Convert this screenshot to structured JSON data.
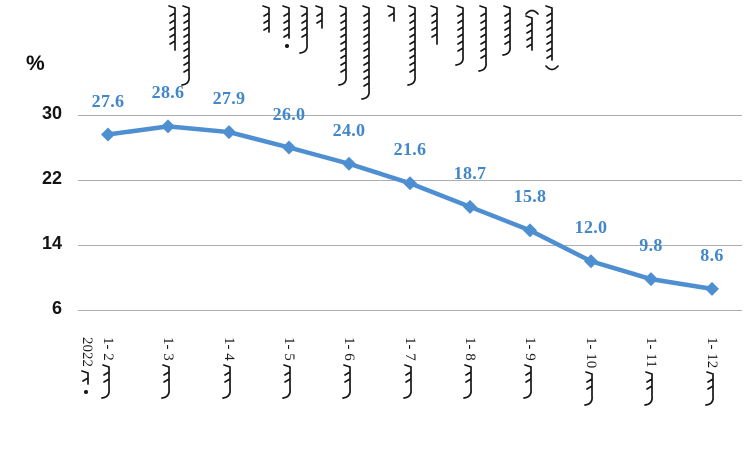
{
  "chart_data": {
    "type": "line",
    "title_mn": "ᠪᠦᠬᠦ ᠣᠷᠣᠨ ᠤ ᠲᠣᠭᠲᠠᠮᠠᠯ ᠬᠥᠷᠥᠩᠭᠡ ᠶᠢᠨ ᠪᠡᠯᠡ ᠣᠷᠣᠭᠤᠯᠤᠯᠲᠠ ᠶᠢᠨ ᠥᠰᠦᠯᠲᠡ ᠶᠢᠨ ᠬᠤᠷᠳᠤᠴᠠ ( ᠨᠡᠶᠢᠯᠡᠪᠦᠷᠢ )",
    "title_script": "traditional Mongolian, vertical columns",
    "unit_label": "%",
    "x_year_prefix": "2022",
    "x_year_word_mn": "ᠣᠨ ᠤ",
    "x_month_word_mn": "ᠰᠠᠷ᠎ᠠ",
    "categories": [
      "2022 ᠣᠨ ᠤ 1- 2 ᠰᠠᠷ᠎ᠠ",
      "1- 3 ᠰᠠᠷ᠎ᠠ",
      "1- 4 ᠰᠠᠷ᠎ᠠ",
      "1- 5 ᠰᠠᠷ᠎ᠠ",
      "1- 6 ᠰᠠᠷ᠎ᠠ",
      "1- 7 ᠰᠠᠷ᠎ᠠ",
      "1- 8 ᠰᠠᠷ᠎ᠠ",
      "1- 9 ᠰᠠᠷ᠎ᠠ",
      "1- 10 ᠰᠠᠷ᠎ᠠ",
      "1- 11 ᠰᠠᠷ᠎ᠠ",
      "1- 12 ᠰᠠᠷ᠎ᠠ"
    ],
    "categories_numeric": [
      "1- 2",
      "1- 3",
      "1- 4",
      "1- 5",
      "1- 6",
      "1- 7",
      "1- 8",
      "1- 9",
      "1- 10",
      "1- 11",
      "1- 12"
    ],
    "values": [
      27.6,
      28.6,
      27.9,
      26.0,
      24.0,
      21.6,
      18.7,
      15.8,
      12.0,
      9.8,
      8.6
    ],
    "y_ticks": [
      30,
      22,
      14,
      6
    ],
    "ylim": [
      6,
      32
    ],
    "grid": true,
    "legend_position": "none",
    "marker": "diamond",
    "series_color": "#4e8fd1",
    "label_color": "#4187ca",
    "gridline_color": "#adadad",
    "axis_text_color": "#141414"
  }
}
